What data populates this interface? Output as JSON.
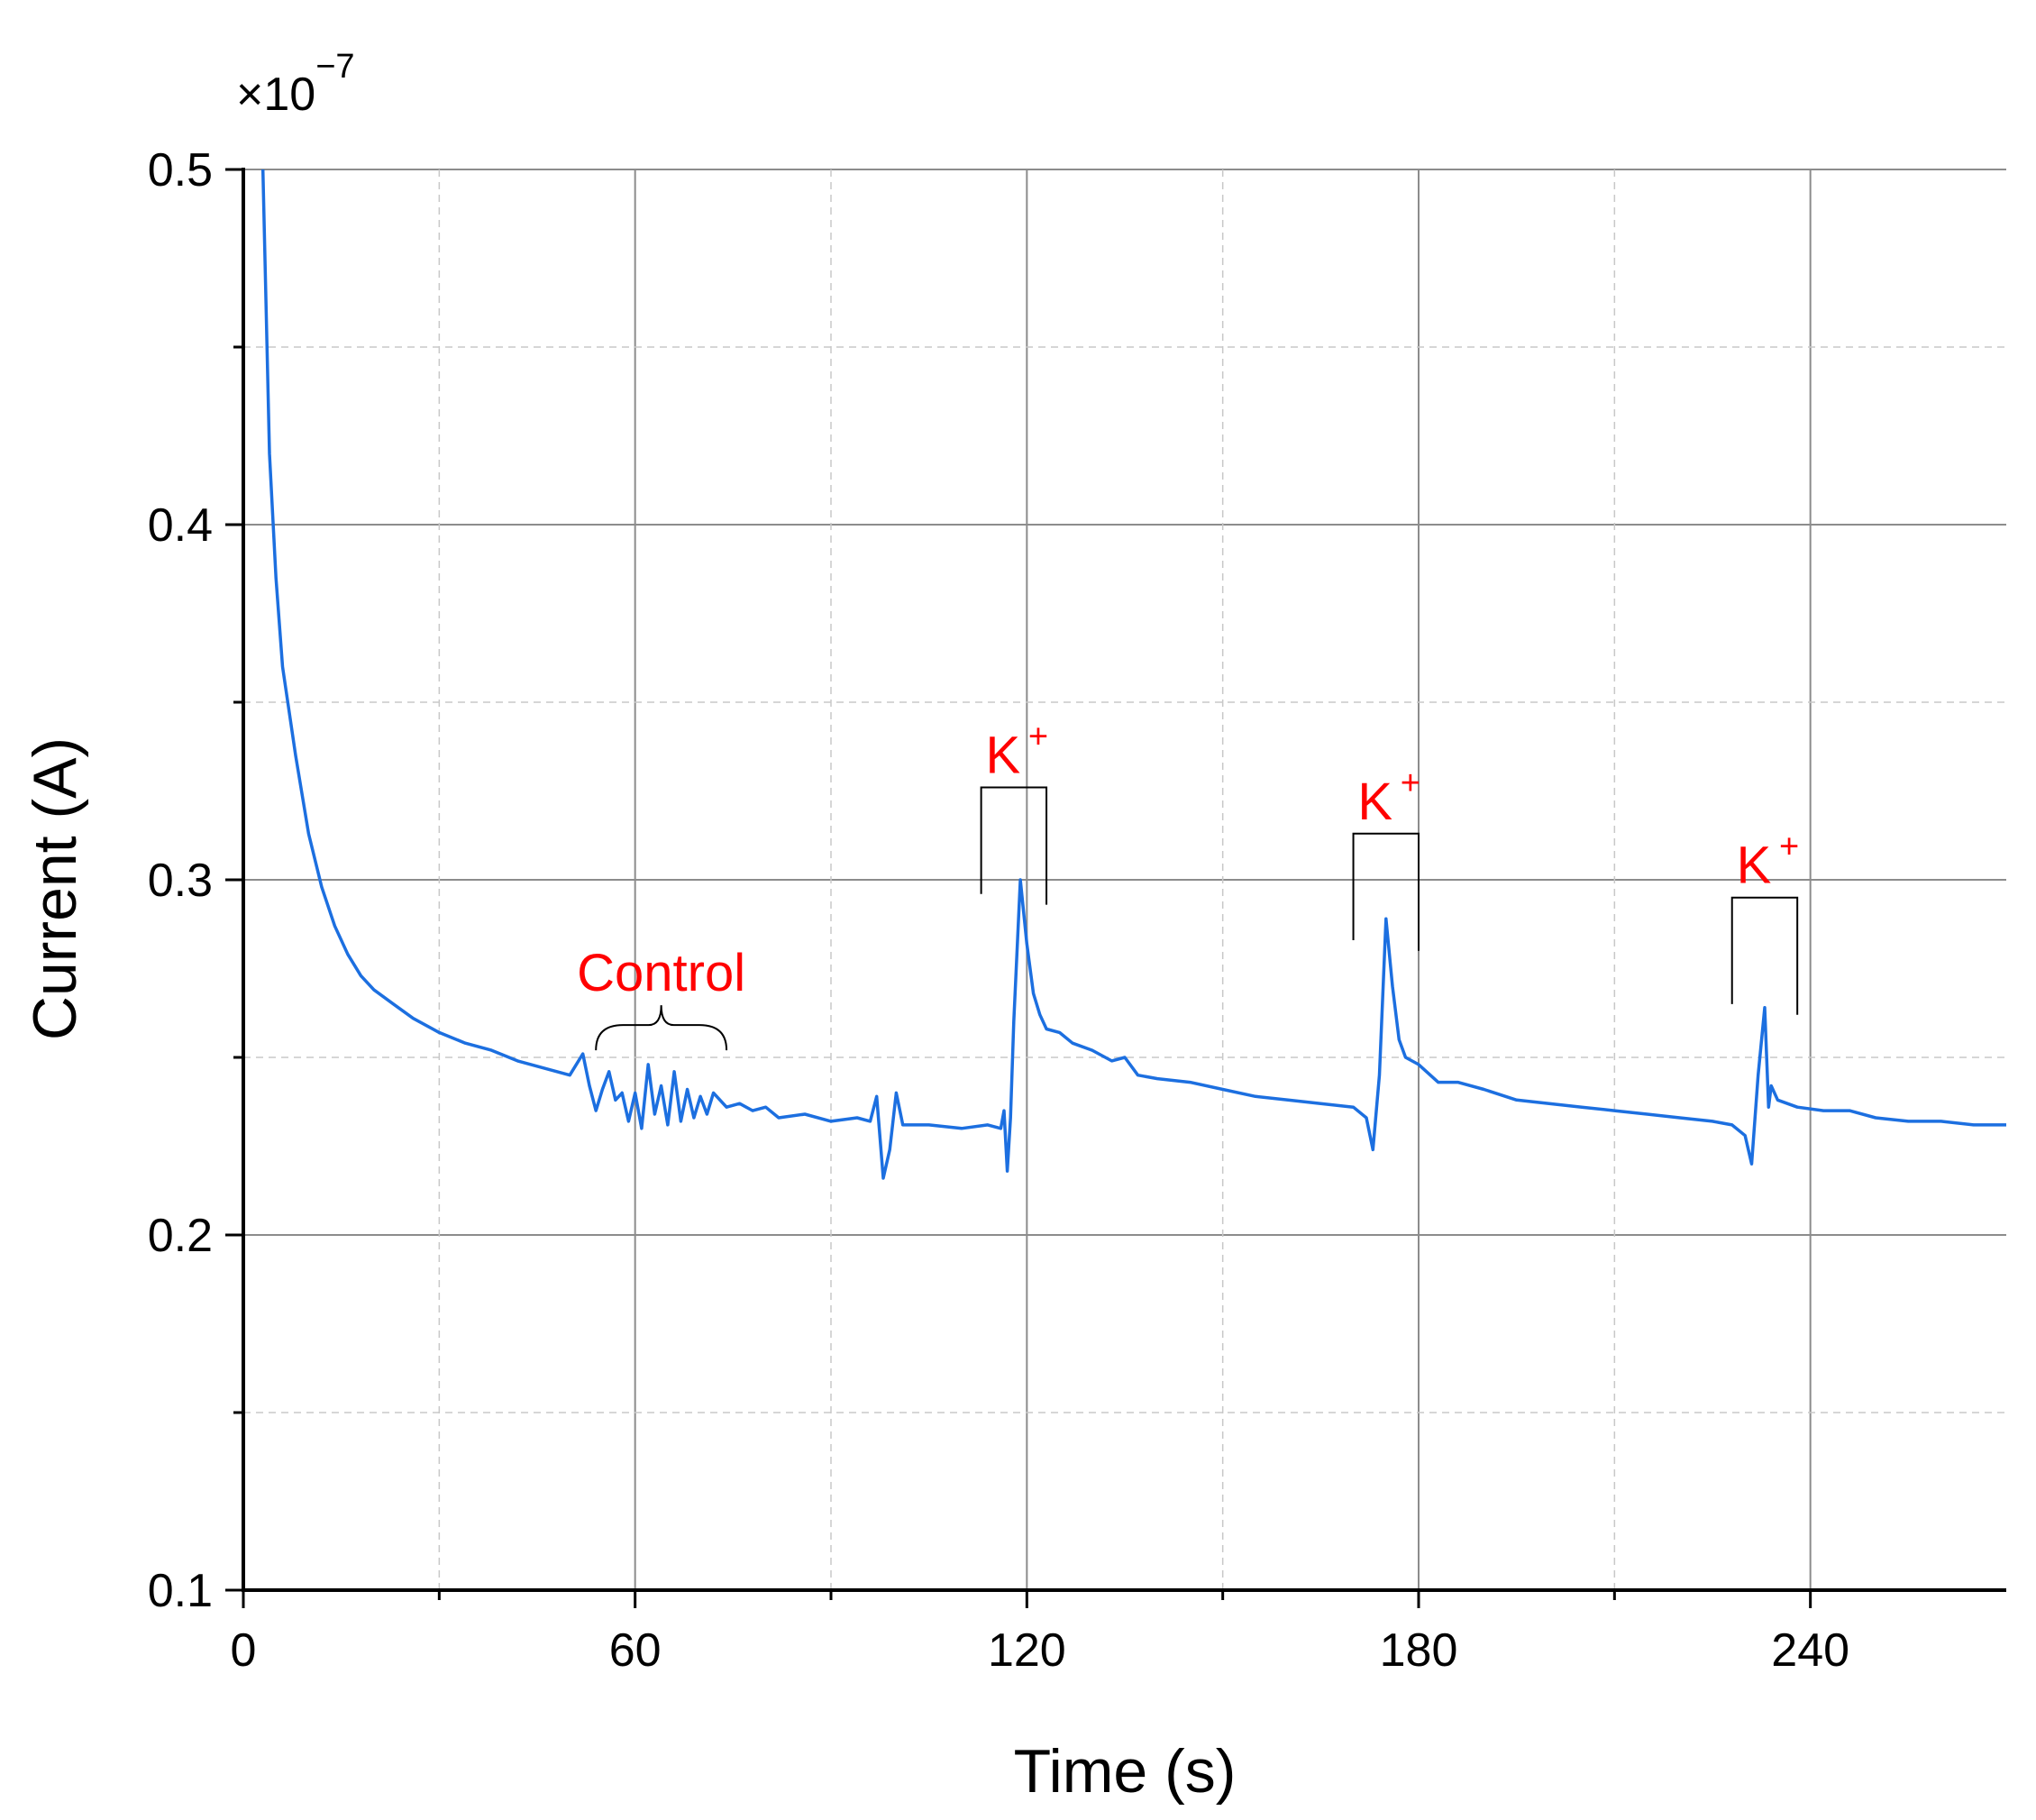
{
  "chart_data": {
    "type": "line",
    "title": "",
    "xlabel": "Time (s)",
    "ylabel": "Current (A)",
    "y_scale_label": {
      "prefix": "×10",
      "exponent": "−7"
    },
    "xlim": [
      0,
      270
    ],
    "ylim": [
      0.1,
      0.5
    ],
    "x_ticks": [
      0,
      60,
      120,
      180,
      240
    ],
    "x_tick_labels": [
      "0",
      "60",
      "120",
      "180",
      "240"
    ],
    "x_minor_ticks": [
      30,
      90,
      150,
      210
    ],
    "y_ticks": [
      0.1,
      0.2,
      0.3,
      0.4,
      0.5
    ],
    "y_tick_labels": [
      "0.1",
      "0.2",
      "0.3",
      "0.4",
      "0.5"
    ],
    "y_minor_ticks": [
      0.15,
      0.25,
      0.35,
      0.45
    ],
    "grid": true,
    "series": [
      {
        "name": "Current",
        "color": "#1c6fe0",
        "points": [
          [
            3,
            0.5
          ],
          [
            4,
            0.42
          ],
          [
            5,
            0.385
          ],
          [
            6,
            0.36
          ],
          [
            8,
            0.335
          ],
          [
            10,
            0.313
          ],
          [
            12,
            0.298
          ],
          [
            14,
            0.287
          ],
          [
            16,
            0.279
          ],
          [
            18,
            0.273
          ],
          [
            20,
            0.269
          ],
          [
            23,
            0.265
          ],
          [
            26,
            0.261
          ],
          [
            30,
            0.257
          ],
          [
            34,
            0.254
          ],
          [
            38,
            0.252
          ],
          [
            42,
            0.249
          ],
          [
            46,
            0.247
          ],
          [
            50,
            0.245
          ],
          [
            52,
            0.251
          ],
          [
            53,
            0.242
          ],
          [
            54,
            0.235
          ],
          [
            55,
            0.241
          ],
          [
            56,
            0.246
          ],
          [
            57,
            0.238
          ],
          [
            58,
            0.24
          ],
          [
            59,
            0.232
          ],
          [
            60,
            0.24
          ],
          [
            61,
            0.23
          ],
          [
            62,
            0.248
          ],
          [
            63,
            0.234
          ],
          [
            64,
            0.242
          ],
          [
            65,
            0.231
          ],
          [
            66,
            0.246
          ],
          [
            67,
            0.232
          ],
          [
            68,
            0.241
          ],
          [
            69,
            0.233
          ],
          [
            70,
            0.239
          ],
          [
            71,
            0.234
          ],
          [
            72,
            0.24
          ],
          [
            74,
            0.236
          ],
          [
            76,
            0.237
          ],
          [
            78,
            0.235
          ],
          [
            80,
            0.236
          ],
          [
            82,
            0.233
          ],
          [
            86,
            0.234
          ],
          [
            90,
            0.232
          ],
          [
            94,
            0.233
          ],
          [
            96,
            0.232
          ],
          [
            97,
            0.239
          ],
          [
            98,
            0.216
          ],
          [
            99,
            0.224
          ],
          [
            100,
            0.24
          ],
          [
            101,
            0.231
          ],
          [
            105,
            0.231
          ],
          [
            110,
            0.23
          ],
          [
            114,
            0.231
          ],
          [
            116,
            0.23
          ],
          [
            116.5,
            0.235
          ],
          [
            117,
            0.218
          ],
          [
            117.5,
            0.233
          ],
          [
            118,
            0.26
          ],
          [
            119,
            0.3
          ],
          [
            120,
            0.282
          ],
          [
            121,
            0.268
          ],
          [
            122,
            0.262
          ],
          [
            123,
            0.258
          ],
          [
            125,
            0.257
          ],
          [
            127,
            0.254
          ],
          [
            130,
            0.252
          ],
          [
            133,
            0.249
          ],
          [
            135,
            0.25
          ],
          [
            137,
            0.245
          ],
          [
            140,
            0.244
          ],
          [
            145,
            0.243
          ],
          [
            150,
            0.241
          ],
          [
            155,
            0.239
          ],
          [
            160,
            0.238
          ],
          [
            165,
            0.237
          ],
          [
            170,
            0.236
          ],
          [
            172,
            0.233
          ],
          [
            173,
            0.224
          ],
          [
            174,
            0.245
          ],
          [
            175,
            0.289
          ],
          [
            176,
            0.27
          ],
          [
            177,
            0.255
          ],
          [
            178,
            0.25
          ],
          [
            180,
            0.248
          ],
          [
            183,
            0.243
          ],
          [
            186,
            0.243
          ],
          [
            190,
            0.241
          ],
          [
            195,
            0.238
          ],
          [
            200,
            0.237
          ],
          [
            205,
            0.236
          ],
          [
            210,
            0.235
          ],
          [
            215,
            0.234
          ],
          [
            220,
            0.233
          ],
          [
            225,
            0.232
          ],
          [
            228,
            0.231
          ],
          [
            230,
            0.228
          ],
          [
            231,
            0.22
          ],
          [
            232,
            0.245
          ],
          [
            233,
            0.264
          ],
          [
            233.6,
            0.236
          ],
          [
            234,
            0.242
          ],
          [
            235,
            0.238
          ],
          [
            238,
            0.236
          ],
          [
            242,
            0.235
          ],
          [
            246,
            0.235
          ],
          [
            250,
            0.233
          ],
          [
            255,
            0.232
          ],
          [
            260,
            0.232
          ],
          [
            265,
            0.231
          ],
          [
            270,
            0.231
          ]
        ]
      }
    ],
    "annotations": [
      {
        "text": "Control",
        "type": "brace",
        "x_start": 54,
        "x_end": 74,
        "y": 0.252,
        "color": "#ff0000"
      },
      {
        "text": "K",
        "sup": "+",
        "type": "bracket",
        "x_start": 113,
        "x_end": 123,
        "y_top": 0.326,
        "y_left_end": 0.296,
        "y_right_end": 0.293,
        "color": "#ff0000"
      },
      {
        "text": "K",
        "sup": "+",
        "type": "bracket",
        "x_start": 170,
        "x_end": 180,
        "y_top": 0.313,
        "y_left_end": 0.283,
        "y_right_end": 0.28,
        "color": "#ff0000"
      },
      {
        "text": "K",
        "sup": "+",
        "type": "bracket",
        "x_start": 228,
        "x_end": 238,
        "y_top": 0.295,
        "y_left_end": 0.265,
        "y_right_end": 0.262,
        "color": "#ff0000"
      }
    ]
  }
}
